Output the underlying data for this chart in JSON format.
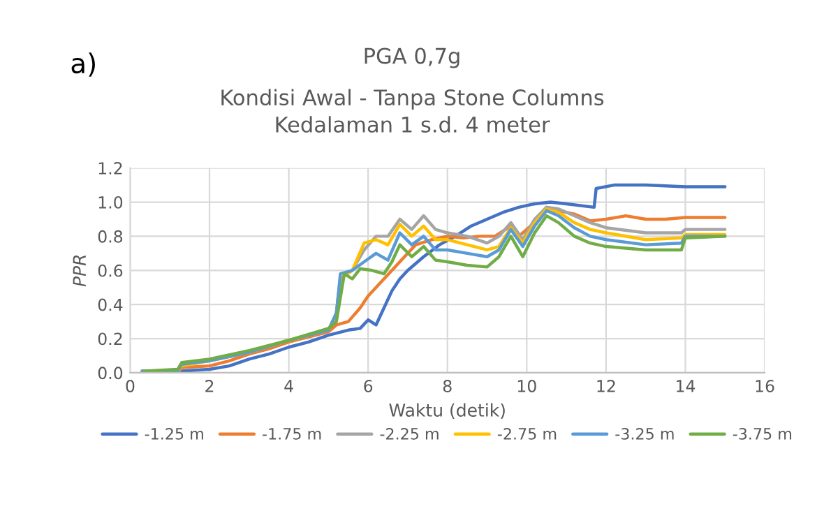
{
  "chart_data": {
    "type": "line",
    "title": "PGA 0,7g",
    "subtitle": "Kondisi Awal - Tanpa Stone Columns\nKedalaman 1 s.d. 4 meter",
    "xlabel": "Waktu (detik)",
    "ylabel": "PPR",
    "annotations": [
      "a)"
    ],
    "xlim": [
      0,
      16
    ],
    "xticks": [
      0,
      2,
      4,
      6,
      8,
      10,
      12,
      14,
      16
    ],
    "ylim": [
      0,
      1.2
    ],
    "yticks": [
      {
        "value": 0,
        "label": "0.0"
      },
      {
        "value": 0.2,
        "label": "0.2"
      },
      {
        "value": 0.4,
        "label": "0.4"
      },
      {
        "value": 0.6,
        "label": "0.6"
      },
      {
        "value": 0.8,
        "label": "0.8"
      },
      {
        "value": 1.0,
        "label": "1.0"
      },
      {
        "value": 1.2,
        "label": "1.2"
      }
    ],
    "grid": true,
    "legend": "bottom",
    "marker": "none",
    "line_style": "solid",
    "series": [
      {
        "name": "-1.25 m",
        "color": "#4472c4",
        "x": [
          0.3,
          1.2,
          1.3,
          2,
          2.5,
          3,
          3.5,
          4,
          4.5,
          5,
          5.5,
          5.8,
          6.0,
          6.2,
          6.4,
          6.6,
          6.8,
          7.0,
          7.4,
          7.8,
          8.2,
          8.6,
          9,
          9.4,
          9.8,
          10.2,
          10.6,
          11.0,
          11.7,
          11.75,
          12.2,
          13,
          14,
          15
        ],
        "values": [
          0,
          0,
          0.01,
          0.02,
          0.04,
          0.08,
          0.11,
          0.15,
          0.18,
          0.22,
          0.25,
          0.26,
          0.31,
          0.28,
          0.38,
          0.48,
          0.55,
          0.6,
          0.68,
          0.75,
          0.8,
          0.86,
          0.9,
          0.94,
          0.97,
          0.99,
          1.0,
          0.99,
          0.97,
          1.08,
          1.1,
          1.1,
          1.09,
          1.09
        ]
      },
      {
        "name": "-1.75 m",
        "color": "#ed7d31",
        "x": [
          0.3,
          1.2,
          1.3,
          2,
          2.5,
          3,
          3.5,
          4,
          4.5,
          5,
          5.2,
          5.5,
          5.8,
          6,
          6.2,
          6.4,
          6.6,
          6.8,
          7.0,
          7.2,
          7.6,
          8,
          8.4,
          8.8,
          9.2,
          9.6,
          9.8,
          10.2,
          10.5,
          10.8,
          11.2,
          11.6,
          12,
          12.5,
          13,
          13.5,
          14,
          15
        ],
        "values": [
          0,
          0,
          0.03,
          0.04,
          0.07,
          0.11,
          0.14,
          0.18,
          0.21,
          0.24,
          0.28,
          0.3,
          0.38,
          0.45,
          0.5,
          0.55,
          0.6,
          0.65,
          0.7,
          0.75,
          0.78,
          0.8,
          0.79,
          0.8,
          0.8,
          0.86,
          0.8,
          0.88,
          0.97,
          0.95,
          0.93,
          0.89,
          0.9,
          0.92,
          0.9,
          0.9,
          0.91,
          0.91
        ]
      },
      {
        "name": "-2.25 m",
        "color": "#a5a5a5",
        "x": [
          0.3,
          1.2,
          1.3,
          2,
          3,
          4,
          5,
          5.2,
          5.3,
          5.6,
          5.9,
          6.2,
          6.5,
          6.8,
          7.1,
          7.4,
          7.7,
          8,
          8.5,
          9,
          9.3,
          9.6,
          9.9,
          10.2,
          10.5,
          10.8,
          11.2,
          11.6,
          12,
          13,
          13.9,
          14,
          15
        ],
        "values": [
          0.01,
          0.01,
          0.05,
          0.07,
          0.12,
          0.19,
          0.25,
          0.35,
          0.55,
          0.6,
          0.72,
          0.8,
          0.8,
          0.9,
          0.84,
          0.92,
          0.84,
          0.82,
          0.8,
          0.76,
          0.8,
          0.88,
          0.78,
          0.9,
          0.97,
          0.96,
          0.92,
          0.88,
          0.85,
          0.82,
          0.82,
          0.84,
          0.84
        ]
      },
      {
        "name": "-2.75 m",
        "color": "#ffc000",
        "x": [
          0.3,
          1.2,
          1.3,
          2,
          3,
          4,
          5,
          5.2,
          5.3,
          5.6,
          5.9,
          6.2,
          6.5,
          6.8,
          7.1,
          7.4,
          7.7,
          8,
          8.5,
          9,
          9.3,
          9.6,
          9.9,
          10.2,
          10.5,
          10.8,
          11.2,
          11.6,
          12,
          13,
          13.9,
          14,
          15
        ],
        "values": [
          0.01,
          0.01,
          0.04,
          0.07,
          0.12,
          0.19,
          0.25,
          0.35,
          0.55,
          0.6,
          0.76,
          0.78,
          0.75,
          0.87,
          0.8,
          0.86,
          0.78,
          0.78,
          0.75,
          0.72,
          0.74,
          0.85,
          0.76,
          0.88,
          0.96,
          0.94,
          0.88,
          0.84,
          0.82,
          0.78,
          0.79,
          0.81,
          0.81
        ]
      },
      {
        "name": "-3.25 m",
        "color": "#5b9bd5",
        "x": [
          0.3,
          1.2,
          1.3,
          2,
          3,
          4,
          5,
          5.2,
          5.3,
          5.6,
          5.9,
          6.2,
          6.5,
          6.8,
          7.1,
          7.4,
          7.7,
          8,
          8.5,
          9,
          9.3,
          9.6,
          9.9,
          10.2,
          10.5,
          10.8,
          11.2,
          11.6,
          12,
          13,
          13.9,
          14,
          15
        ],
        "values": [
          0.01,
          0.01,
          0.05,
          0.07,
          0.12,
          0.19,
          0.25,
          0.35,
          0.58,
          0.6,
          0.65,
          0.7,
          0.66,
          0.82,
          0.75,
          0.8,
          0.72,
          0.72,
          0.7,
          0.68,
          0.72,
          0.84,
          0.74,
          0.86,
          0.95,
          0.92,
          0.85,
          0.8,
          0.78,
          0.75,
          0.76,
          0.8,
          0.8
        ]
      },
      {
        "name": "-3.75 m",
        "color": "#70ad47",
        "x": [
          0.3,
          0.4,
          1.2,
          1.3,
          2,
          3,
          4,
          5,
          5.2,
          5.4,
          5.6,
          5.8,
          6.1,
          6.4,
          6.6,
          6.8,
          7.1,
          7.4,
          7.7,
          8,
          8.5,
          9,
          9.3,
          9.6,
          9.9,
          10.2,
          10.5,
          10.8,
          11.2,
          11.6,
          12,
          13,
          13.9,
          14,
          15
        ],
        "values": [
          0,
          0.01,
          0.02,
          0.06,
          0.08,
          0.13,
          0.19,
          0.26,
          0.3,
          0.58,
          0.55,
          0.61,
          0.6,
          0.58,
          0.65,
          0.75,
          0.68,
          0.74,
          0.66,
          0.65,
          0.63,
          0.62,
          0.68,
          0.8,
          0.68,
          0.82,
          0.92,
          0.88,
          0.8,
          0.76,
          0.74,
          0.72,
          0.72,
          0.79,
          0.8
        ]
      }
    ]
  }
}
